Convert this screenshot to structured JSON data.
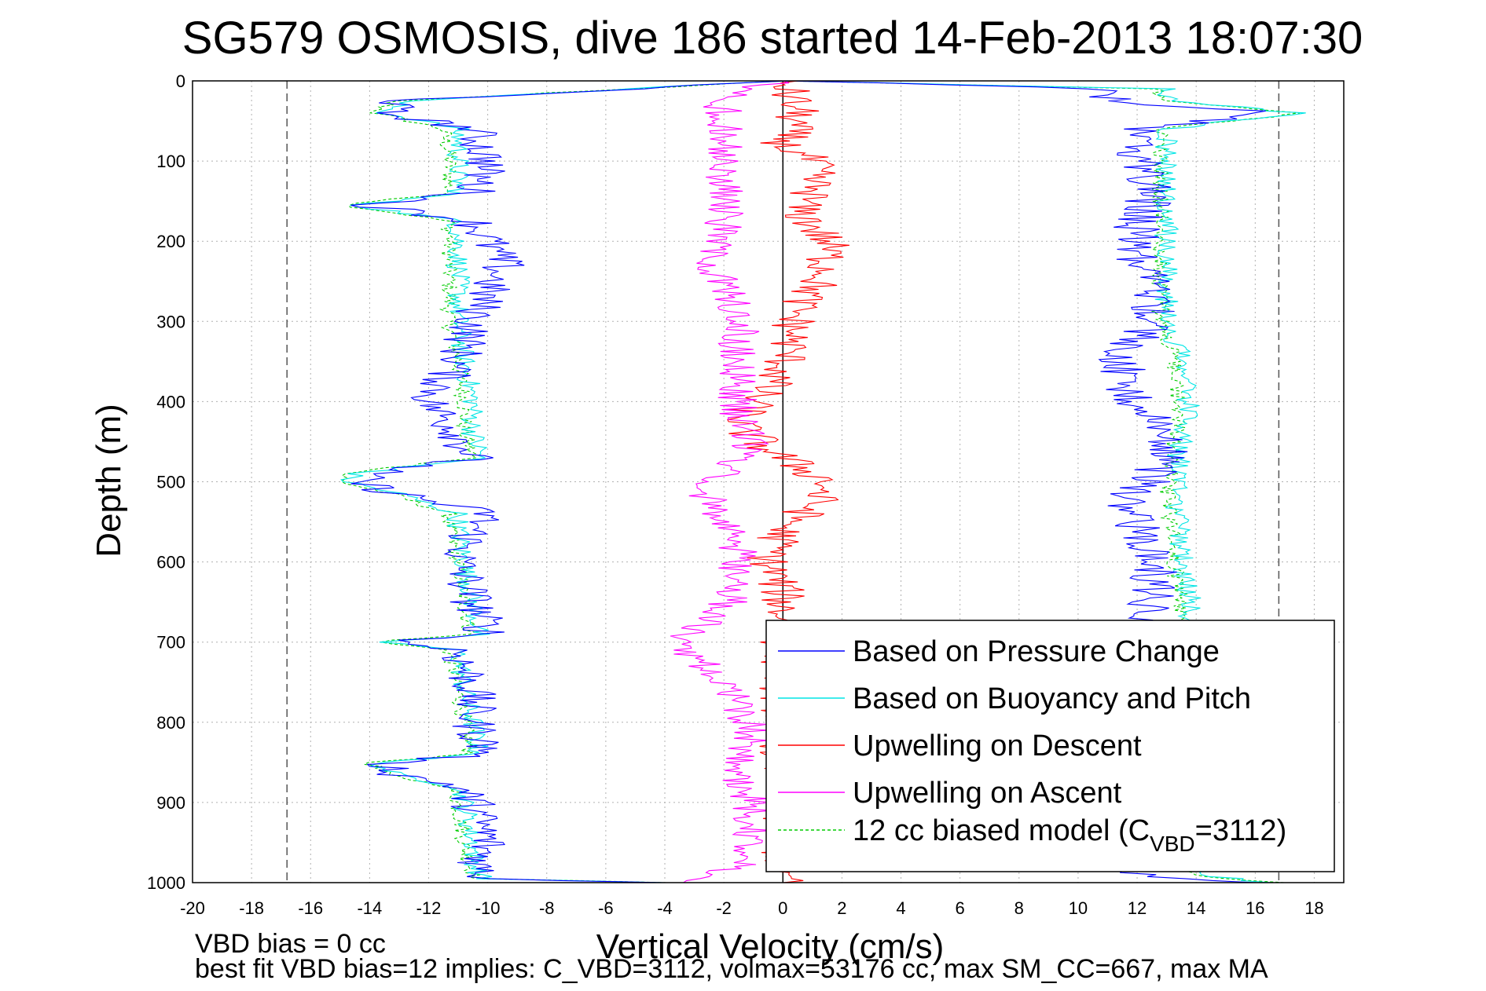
{
  "chart_data": {
    "type": "line",
    "title": "SG579 OSMOSIS, dive 186 started 14-Feb-2013 18:07:30",
    "xlabel": "Vertical Velocity (cm/s)",
    "ylabel": "Depth (m)",
    "xlim": [
      -20,
      19
    ],
    "ylim": [
      1000,
      0
    ],
    "x_ticks": [
      -20,
      -18,
      -16,
      -14,
      -12,
      -10,
      -8,
      -6,
      -4,
      -2,
      0,
      2,
      4,
      6,
      8,
      10,
      12,
      14,
      16,
      18
    ],
    "y_ticks": [
      0,
      100,
      200,
      300,
      400,
      500,
      600,
      700,
      800,
      900,
      1000
    ],
    "grid": true,
    "legend_position": "bottom-right",
    "reference_lines": [
      {
        "x": -16.8,
        "style": "dashed",
        "color": "#555555"
      },
      {
        "x": 0,
        "style": "solid",
        "color": "#000000"
      },
      {
        "x": 16.8,
        "style": "dashed",
        "color": "#555555"
      }
    ],
    "series": [
      {
        "name": "Based on Pressure Change",
        "color": "#0000ff",
        "style": "solid",
        "descent": [
          [
            0,
            0
          ],
          [
            25,
            -13
          ],
          [
            40,
            -13.5
          ],
          [
            60,
            -10.5
          ],
          [
            100,
            -10
          ],
          [
            140,
            -10.5
          ],
          [
            155,
            -14
          ],
          [
            175,
            -10.5
          ],
          [
            200,
            -10
          ],
          [
            230,
            -9.5
          ],
          [
            260,
            -10
          ],
          [
            300,
            -10.5
          ],
          [
            350,
            -11
          ],
          [
            400,
            -12
          ],
          [
            440,
            -11
          ],
          [
            470,
            -10.5
          ],
          [
            490,
            -14
          ],
          [
            500,
            -14.5
          ],
          [
            515,
            -13
          ],
          [
            540,
            -10
          ],
          [
            560,
            -10.5
          ],
          [
            600,
            -11
          ],
          [
            650,
            -10.5
          ],
          [
            690,
            -10
          ],
          [
            700,
            -13
          ],
          [
            710,
            -11
          ],
          [
            760,
            -10.5
          ],
          [
            800,
            -10.5
          ],
          [
            840,
            -10
          ],
          [
            850,
            -13.5
          ],
          [
            865,
            -13
          ],
          [
            880,
            -11
          ],
          [
            900,
            -10.5
          ],
          [
            950,
            -10
          ],
          [
            980,
            -10.3
          ],
          [
            995,
            -10
          ],
          [
            1000,
            -4
          ]
        ],
        "ascent": [
          [
            1000,
            16
          ],
          [
            990,
            12
          ],
          [
            950,
            12.5
          ],
          [
            900,
            12.5
          ],
          [
            850,
            12.3
          ],
          [
            800,
            12.5
          ],
          [
            760,
            12.3
          ],
          [
            700,
            12
          ],
          [
            650,
            12.5
          ],
          [
            600,
            12.6
          ],
          [
            560,
            12
          ],
          [
            520,
            11.5
          ],
          [
            500,
            12.5
          ],
          [
            460,
            13
          ],
          [
            420,
            12.5
          ],
          [
            380,
            11.5
          ],
          [
            340,
            11.5
          ],
          [
            300,
            12.5
          ],
          [
            260,
            12.5
          ],
          [
            220,
            12
          ],
          [
            180,
            12
          ],
          [
            140,
            12.5
          ],
          [
            100,
            12
          ],
          [
            60,
            12
          ],
          [
            40,
            16.5
          ],
          [
            25,
            11
          ],
          [
            10,
            11
          ],
          [
            0,
            0
          ]
        ]
      },
      {
        "name": "Based on Buoyancy and Pitch",
        "color": "#00e5e5",
        "style": "solid",
        "descent": [
          [
            0,
            0
          ],
          [
            25,
            -12.8
          ],
          [
            40,
            -13.5
          ],
          [
            60,
            -11
          ],
          [
            100,
            -11
          ],
          [
            140,
            -11
          ],
          [
            155,
            -14.5
          ],
          [
            175,
            -11
          ],
          [
            200,
            -11
          ],
          [
            230,
            -11
          ],
          [
            260,
            -11
          ],
          [
            300,
            -11
          ],
          [
            350,
            -10.8
          ],
          [
            400,
            -10.5
          ],
          [
            440,
            -10.5
          ],
          [
            470,
            -10.2
          ],
          [
            490,
            -14.5
          ],
          [
            500,
            -14.8
          ],
          [
            515,
            -13
          ],
          [
            540,
            -11
          ],
          [
            560,
            -11
          ],
          [
            600,
            -10.8
          ],
          [
            650,
            -10.5
          ],
          [
            690,
            -10.3
          ],
          [
            700,
            -13.5
          ],
          [
            710,
            -11
          ],
          [
            760,
            -10.8
          ],
          [
            800,
            -10.5
          ],
          [
            840,
            -10.3
          ],
          [
            850,
            -13.8
          ],
          [
            865,
            -13.2
          ],
          [
            880,
            -11
          ],
          [
            900,
            -10.8
          ],
          [
            950,
            -10.5
          ],
          [
            980,
            -10.4
          ],
          [
            995,
            -10.2
          ],
          [
            1000,
            -4
          ]
        ],
        "ascent": [
          [
            1000,
            16.5
          ],
          [
            990,
            14
          ],
          [
            950,
            14
          ],
          [
            900,
            13.8
          ],
          [
            850,
            13.8
          ],
          [
            800,
            13.7
          ],
          [
            760,
            13.6
          ],
          [
            700,
            13.6
          ],
          [
            650,
            13.8
          ],
          [
            600,
            13.5
          ],
          [
            560,
            13.5
          ],
          [
            520,
            13.3
          ],
          [
            500,
            13.4
          ],
          [
            460,
            13.4
          ],
          [
            420,
            13.8
          ],
          [
            380,
            13.6
          ],
          [
            340,
            13.5
          ],
          [
            300,
            13
          ],
          [
            260,
            13
          ],
          [
            220,
            13
          ],
          [
            180,
            13
          ],
          [
            140,
            13
          ],
          [
            100,
            13
          ],
          [
            60,
            13
          ],
          [
            40,
            17.5
          ],
          [
            25,
            13
          ],
          [
            10,
            13
          ],
          [
            0,
            0
          ]
        ]
      },
      {
        "name": "Upwelling on Descent",
        "color": "#ff0000",
        "style": "solid",
        "descent": [
          [
            0,
            0
          ],
          [
            40,
            0.5
          ],
          [
            80,
            0
          ],
          [
            100,
            1
          ],
          [
            140,
            1
          ],
          [
            160,
            0.5
          ],
          [
            200,
            1.5
          ],
          [
            240,
            1.5
          ],
          [
            280,
            0.5
          ],
          [
            320,
            0.3
          ],
          [
            360,
            0
          ],
          [
            400,
            -1
          ],
          [
            430,
            -1.5
          ],
          [
            460,
            -0.5
          ],
          [
            500,
            1.5
          ],
          [
            530,
            1
          ],
          [
            560,
            0
          ],
          [
            600,
            -0.5
          ],
          [
            640,
            0
          ],
          [
            680,
            0
          ],
          [
            720,
            0
          ],
          [
            760,
            0
          ],
          [
            800,
            0
          ],
          [
            860,
            0
          ],
          [
            920,
            0
          ],
          [
            1000,
            0
          ]
        ]
      },
      {
        "name": "Upwelling on Ascent",
        "color": "#ff00ff",
        "style": "solid",
        "ascent": [
          [
            1000,
            -3.5
          ],
          [
            980,
            -1.5
          ],
          [
            940,
            -1
          ],
          [
            900,
            -1
          ],
          [
            860,
            -1.5
          ],
          [
            820,
            -1
          ],
          [
            780,
            -1.5
          ],
          [
            740,
            -2.5
          ],
          [
            700,
            -3.5
          ],
          [
            660,
            -2
          ],
          [
            620,
            -1.5
          ],
          [
            580,
            -1.5
          ],
          [
            540,
            -2.5
          ],
          [
            500,
            -2.5
          ],
          [
            460,
            -1
          ],
          [
            420,
            -1.5
          ],
          [
            380,
            -1.5
          ],
          [
            340,
            -1.5
          ],
          [
            300,
            -1.5
          ],
          [
            260,
            -2
          ],
          [
            220,
            -2.5
          ],
          [
            180,
            -2
          ],
          [
            140,
            -2
          ],
          [
            100,
            -2
          ],
          [
            60,
            -2
          ],
          [
            20,
            -2
          ],
          [
            0,
            0
          ]
        ]
      },
      {
        "name": "12 cc biased model (CVBD=3112)",
        "label_main": "12 cc biased model (C",
        "label_sub": "VBD",
        "label_tail": "=3112)",
        "color": "#00cc00",
        "style": "dashed",
        "descent": [
          [
            0,
            0
          ],
          [
            25,
            -13.2
          ],
          [
            40,
            -13.8
          ],
          [
            60,
            -11.5
          ],
          [
            100,
            -11.3
          ],
          [
            140,
            -11.3
          ],
          [
            155,
            -14.8
          ],
          [
            175,
            -11.3
          ],
          [
            200,
            -11.3
          ],
          [
            230,
            -11.3
          ],
          [
            260,
            -11.3
          ],
          [
            300,
            -11.3
          ],
          [
            350,
            -11
          ],
          [
            400,
            -10.8
          ],
          [
            440,
            -10.8
          ],
          [
            470,
            -10.5
          ],
          [
            490,
            -14.8
          ],
          [
            500,
            -15
          ],
          [
            515,
            -13.3
          ],
          [
            540,
            -11.3
          ],
          [
            560,
            -11.3
          ],
          [
            600,
            -11
          ],
          [
            650,
            -10.8
          ],
          [
            690,
            -10.6
          ],
          [
            700,
            -13.8
          ],
          [
            710,
            -11.3
          ],
          [
            760,
            -11
          ],
          [
            800,
            -10.8
          ],
          [
            840,
            -10.6
          ],
          [
            850,
            -14
          ],
          [
            865,
            -13.5
          ],
          [
            880,
            -11.3
          ],
          [
            900,
            -11
          ],
          [
            950,
            -10.8
          ],
          [
            980,
            -10.6
          ],
          [
            995,
            -10.4
          ],
          [
            1000,
            -4
          ]
        ],
        "ascent": [
          [
            1000,
            16.8
          ],
          [
            990,
            13.7
          ],
          [
            950,
            13.7
          ],
          [
            900,
            13.5
          ],
          [
            850,
            13.5
          ],
          [
            800,
            13.4
          ],
          [
            760,
            13.3
          ],
          [
            700,
            13.3
          ],
          [
            650,
            13.5
          ],
          [
            600,
            13.2
          ],
          [
            560,
            13.2
          ],
          [
            520,
            13
          ],
          [
            500,
            13.1
          ],
          [
            460,
            13.1
          ],
          [
            420,
            13.5
          ],
          [
            380,
            13.3
          ],
          [
            340,
            13.2
          ],
          [
            300,
            12.8
          ],
          [
            260,
            12.8
          ],
          [
            220,
            12.8
          ],
          [
            180,
            12.8
          ],
          [
            140,
            12.8
          ],
          [
            100,
            12.8
          ],
          [
            60,
            12.8
          ],
          [
            40,
            17.8
          ],
          [
            25,
            12.8
          ],
          [
            10,
            12.8
          ],
          [
            0,
            0
          ]
        ]
      }
    ],
    "annotations": [
      "VBD bias = 0 cc",
      "best fit VBD bias=12 implies: C_VBD=3112, volmax=53176 cc, max SM_CC=667, max MA"
    ]
  }
}
